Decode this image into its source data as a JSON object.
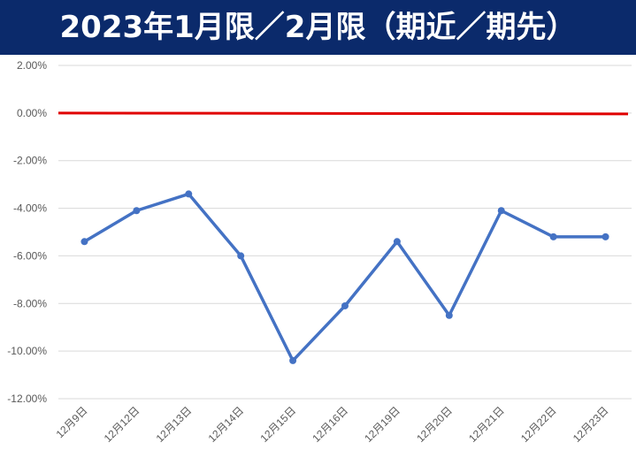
{
  "chart_data": {
    "type": "line",
    "title": "2023年1月限／2月限（期近／期先）",
    "categories": [
      "12月9日",
      "12月12日",
      "12月13日",
      "12月14日",
      "12月15日",
      "12月16日",
      "12月19日",
      "12月20日",
      "12月21日",
      "12月22日",
      "12月23日"
    ],
    "series": [
      {
        "color": "#4472c4",
        "values": [
          -5.4,
          -4.1,
          -3.4,
          -6.0,
          -10.4,
          -8.1,
          -5.4,
          -8.5,
          -4.1,
          -5.2,
          -5.2
        ]
      }
    ],
    "reference_lines": [
      {
        "value": 0,
        "color": "#e00000"
      }
    ],
    "ylim": [
      -12,
      2
    ],
    "yticks": [
      {
        "value": 2,
        "label": "2.00%"
      },
      {
        "value": 0,
        "label": "0.00%"
      },
      {
        "value": -2,
        "label": "-2.00%"
      },
      {
        "value": -4,
        "label": "-4.00%"
      },
      {
        "value": -6,
        "label": "-6.00%"
      },
      {
        "value": -8,
        "label": "-8.00%"
      },
      {
        "value": -10,
        "label": "-10.00%"
      },
      {
        "value": -12,
        "label": "-12.00%"
      }
    ],
    "grid": true
  }
}
